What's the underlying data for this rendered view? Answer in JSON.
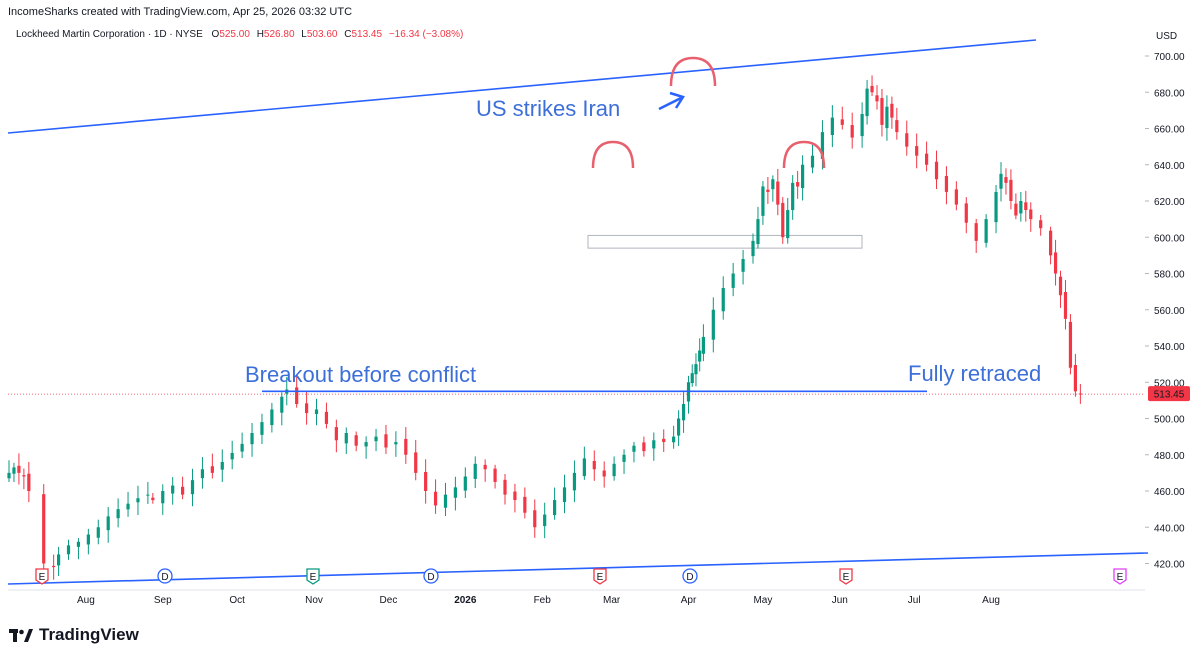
{
  "header": {
    "attribution": "IncomeSharks created with TradingView.com, Apr 25, 2026 03:32 UTC"
  },
  "legend": {
    "symbol": "Lockheed Martin Corporation · 1D · NYSE",
    "open_label": "O",
    "open": "525.00",
    "high_label": "H",
    "high": "526.80",
    "low_label": "L",
    "low": "503.60",
    "close_label": "C",
    "close": "513.45",
    "change": "−16.34 (−3.08%)"
  },
  "brand": {
    "name": "TradingView",
    "logo_icon": "tradingview-logo-icon"
  },
  "colors": {
    "up": "#089981",
    "down": "#f23645",
    "trendline": "#2962ff",
    "annotation": "#3d6fd8",
    "pattern": "#e8606e"
  },
  "chart_data": {
    "type": "candlestick",
    "currency": "USD",
    "y_ticks": [
      "700.00",
      "680.00",
      "660.00",
      "640.00",
      "620.00",
      "600.00",
      "580.00",
      "560.00",
      "540.00",
      "520.00",
      "500.00",
      "480.00",
      "460.00",
      "440.00",
      "420.00"
    ],
    "x_ticks": [
      "Aug",
      "Sep",
      "Oct",
      "Nov",
      "Dec",
      "2026",
      "Feb",
      "Mar",
      "Apr",
      "May",
      "Jun",
      "Jul",
      "Aug"
    ],
    "ylim": [
      410,
      712
    ],
    "last_price": "513.45",
    "series_close": [
      [
        -4,
        467
      ],
      [
        0,
        470
      ],
      [
        2,
        473
      ],
      [
        4,
        470
      ],
      [
        6,
        468
      ],
      [
        8,
        460
      ],
      [
        14,
        420
      ],
      [
        18,
        418
      ],
      [
        20,
        425
      ],
      [
        24,
        430
      ],
      [
        28,
        432
      ],
      [
        32,
        436
      ],
      [
        36,
        440
      ],
      [
        40,
        446
      ],
      [
        44,
        450
      ],
      [
        48,
        453
      ],
      [
        52,
        456
      ],
      [
        56,
        458
      ],
      [
        58,
        455
      ],
      [
        62,
        460
      ],
      [
        66,
        463
      ],
      [
        70,
        458
      ],
      [
        74,
        466
      ],
      [
        78,
        472
      ],
      [
        82,
        470
      ],
      [
        86,
        476
      ],
      [
        90,
        481
      ],
      [
        94,
        486
      ],
      [
        98,
        492
      ],
      [
        102,
        498
      ],
      [
        106,
        505
      ],
      [
        110,
        512
      ],
      [
        112,
        516
      ],
      [
        116,
        508
      ],
      [
        120,
        503
      ],
      [
        124,
        505
      ],
      [
        128,
        497
      ],
      [
        132,
        488
      ],
      [
        136,
        492
      ],
      [
        140,
        485
      ],
      [
        144,
        487
      ],
      [
        148,
        490
      ],
      [
        152,
        484
      ],
      [
        156,
        487
      ],
      [
        160,
        480
      ],
      [
        164,
        470
      ],
      [
        168,
        460
      ],
      [
        172,
        452
      ],
      [
        176,
        458
      ],
      [
        180,
        462
      ],
      [
        184,
        468
      ],
      [
        188,
        475
      ],
      [
        192,
        472
      ],
      [
        196,
        465
      ],
      [
        200,
        458
      ],
      [
        204,
        455
      ],
      [
        208,
        448
      ],
      [
        212,
        440
      ],
      [
        216,
        447
      ],
      [
        220,
        455
      ],
      [
        224,
        462
      ],
      [
        228,
        470
      ],
      [
        232,
        478
      ],
      [
        236,
        472
      ],
      [
        240,
        468
      ],
      [
        244,
        475
      ],
      [
        248,
        480
      ],
      [
        252,
        485
      ],
      [
        256,
        482
      ],
      [
        260,
        488
      ],
      [
        264,
        487
      ],
      [
        268,
        490
      ],
      [
        270,
        500
      ],
      [
        272,
        508
      ],
      [
        274,
        520
      ],
      [
        277,
        530
      ],
      [
        280,
        545
      ],
      [
        284,
        560
      ],
      [
        288,
        572
      ],
      [
        292,
        580
      ],
      [
        296,
        588
      ],
      [
        300,
        598
      ],
      [
        302,
        610
      ],
      [
        304,
        628
      ],
      [
        306,
        625
      ],
      [
        308,
        632
      ],
      [
        310,
        618
      ],
      [
        312,
        600
      ],
      [
        314,
        615
      ],
      [
        316,
        630
      ],
      [
        318,
        628
      ],
      [
        320,
        640
      ],
      [
        324,
        645
      ],
      [
        328,
        658
      ],
      [
        332,
        666
      ],
      [
        336,
        662
      ],
      [
        340,
        655
      ],
      [
        344,
        668
      ],
      [
        346,
        682
      ],
      [
        348,
        680
      ],
      [
        350,
        675
      ],
      [
        352,
        662
      ],
      [
        354,
        672
      ],
      [
        356,
        666
      ],
      [
        358,
        658
      ],
      [
        362,
        650
      ],
      [
        366,
        645
      ],
      [
        370,
        640
      ],
      [
        374,
        632
      ],
      [
        378,
        625
      ],
      [
        382,
        618
      ],
      [
        386,
        608
      ],
      [
        390,
        598
      ],
      [
        394,
        610
      ],
      [
        398,
        625
      ],
      [
        400,
        635
      ],
      [
        402,
        630
      ],
      [
        404,
        620
      ],
      [
        406,
        612
      ],
      [
        408,
        620
      ],
      [
        410,
        615
      ],
      [
        412,
        610
      ],
      [
        416,
        605
      ],
      [
        420,
        590
      ],
      [
        422,
        580
      ],
      [
        424,
        568
      ],
      [
        426,
        555
      ],
      [
        428,
        528
      ],
      [
        430,
        515
      ],
      [
        432,
        513.45
      ]
    ],
    "annotations": [
      {
        "text": "US strikes Iran",
        "at": [
          342,
          675
        ]
      },
      {
        "text": "Breakout before conflict",
        "at": [
          250,
          520
        ]
      },
      {
        "text": "Fully retraced",
        "at": [
          430,
          520
        ]
      }
    ]
  }
}
